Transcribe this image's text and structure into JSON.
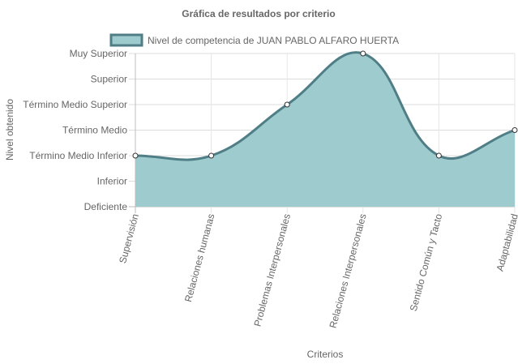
{
  "chart_data": {
    "type": "area",
    "title": "Gráfica de resultados por criterio",
    "xlabel": "Criterios",
    "ylabel": "Nivel obtenido",
    "categories": [
      "Supervisión",
      "Relaciones humanas",
      "Problemas Interpersonales",
      "Relaciones Interpersonales",
      "Sentido Común y Tacto",
      "Adaptabilidad"
    ],
    "y_levels": [
      "Deficiente",
      "Inferior",
      "Término Medio Inferior",
      "Término Medio",
      "Término Medio Superior",
      "Superior",
      "Muy Superior"
    ],
    "ylim": [
      0,
      6
    ],
    "series": [
      {
        "name": "Nivel de competencia de JUAN PABLO ALFARO HUERTA",
        "values": [
          2,
          2,
          4,
          6,
          2,
          3
        ],
        "fill_color": "#9ecbcd",
        "line_color": "#4f7e86"
      }
    ],
    "grid": true,
    "legend_position": "top"
  }
}
